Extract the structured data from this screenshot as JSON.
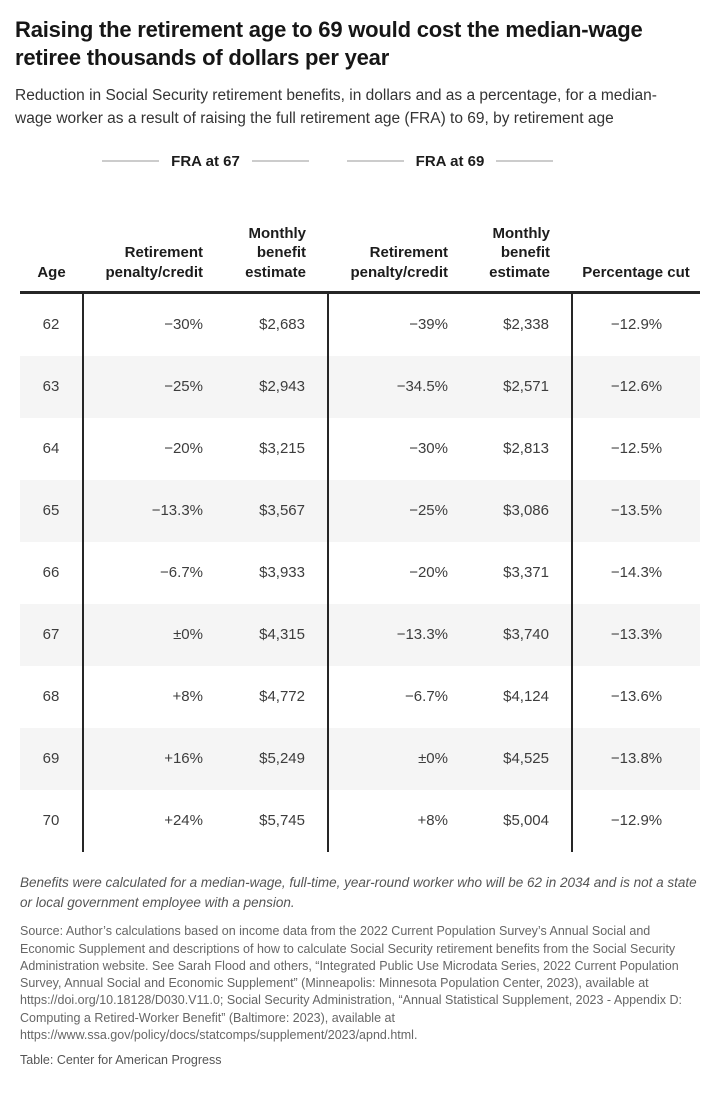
{
  "chart_data": {
    "type": "table",
    "title": "Raising the retirement age to 69 would cost the median-wage retiree thousands of dollars per year",
    "subtitle": "Reduction in Social Security retirement benefits, in dollars and as a percentage, for a median-wage worker as a result of raising the full retirement age (FRA) to 69, by retirement age",
    "group_headers": [
      "FRA at 67",
      "FRA at 69"
    ],
    "columns": [
      "Age",
      "Retirement penalty/credit",
      "Monthly benefit estimate",
      "Retirement penalty/credit",
      "Monthly benefit estimate",
      "Percentage cut"
    ],
    "rows": [
      {
        "age": "62",
        "fra67_penalty": "−30%",
        "fra67_benefit": "$2,683",
        "fra69_penalty": "−39%",
        "fra69_benefit": "$2,338",
        "percentage_cut": "−12.9%"
      },
      {
        "age": "63",
        "fra67_penalty": "−25%",
        "fra67_benefit": "$2,943",
        "fra69_penalty": "−34.5%",
        "fra69_benefit": "$2,571",
        "percentage_cut": "−12.6%"
      },
      {
        "age": "64",
        "fra67_penalty": "−20%",
        "fra67_benefit": "$3,215",
        "fra69_penalty": "−30%",
        "fra69_benefit": "$2,813",
        "percentage_cut": "−12.5%"
      },
      {
        "age": "65",
        "fra67_penalty": "−13.3%",
        "fra67_benefit": "$3,567",
        "fra69_penalty": "−25%",
        "fra69_benefit": "$3,086",
        "percentage_cut": "−13.5%"
      },
      {
        "age": "66",
        "fra67_penalty": "−6.7%",
        "fra67_benefit": "$3,933",
        "fra69_penalty": "−20%",
        "fra69_benefit": "$3,371",
        "percentage_cut": "−14.3%"
      },
      {
        "age": "67",
        "fra67_penalty": "±0%",
        "fra67_benefit": "$4,315",
        "fra69_penalty": "−13.3%",
        "fra69_benefit": "$3,740",
        "percentage_cut": "−13.3%"
      },
      {
        "age": "68",
        "fra67_penalty": "+8%",
        "fra67_benefit": "$4,772",
        "fra69_penalty": "−6.7%",
        "fra69_benefit": "$4,124",
        "percentage_cut": "−13.6%"
      },
      {
        "age": "69",
        "fra67_penalty": "+16%",
        "fra67_benefit": "$5,249",
        "fra69_penalty": "±0%",
        "fra69_benefit": "$4,525",
        "percentage_cut": "−13.8%"
      },
      {
        "age": "70",
        "fra67_penalty": "+24%",
        "fra67_benefit": "$5,745",
        "fra69_penalty": "+8%",
        "fra69_benefit": "$5,004",
        "percentage_cut": "−12.9%"
      }
    ],
    "layout": {
      "striped_rows": "alternating, ages 63/65/67/69 shaded",
      "grid": "vertical rules after Age column and between column groups, thick rule under header"
    }
  },
  "footer": {
    "note": "Benefits were calculated for a median-wage, full-time, year-round worker who will be 62 in 2034 and is not a state or local government employee with a pension.",
    "source": "Source: Author’s calculations based on income data from the 2022 Current Population Survey’s Annual Social and Economic Supplement and descriptions of how to calculate Social Security retirement benefits from the Social Security Administration website. See Sarah Flood and others, “Integrated Public Use Microdata Series, 2022 Current Population Survey, Annual Social and Economic Supplement” (Minneapolis: Minnesota Population Center, 2023), available at https://doi.org/10.18128/D030.V11.0; Social Security Administration, “Annual Statistical Supplement, 2023 - Appendix D: Computing a Retired-Worker Benefit” (Baltimore: 2023), available at https://www.ssa.gov/policy/docs/statcomps/supplement/2023/apnd.html.",
    "credit": "Table: Center for American Progress"
  },
  "colors": {
    "title_text": "#161616",
    "body_text": "#3d3d3d",
    "muted_text": "#666666",
    "row_stripe": "#f5f5f5",
    "table_rule": "#262626",
    "group_divider_line": "#cccccc",
    "background": "#ffffff"
  }
}
